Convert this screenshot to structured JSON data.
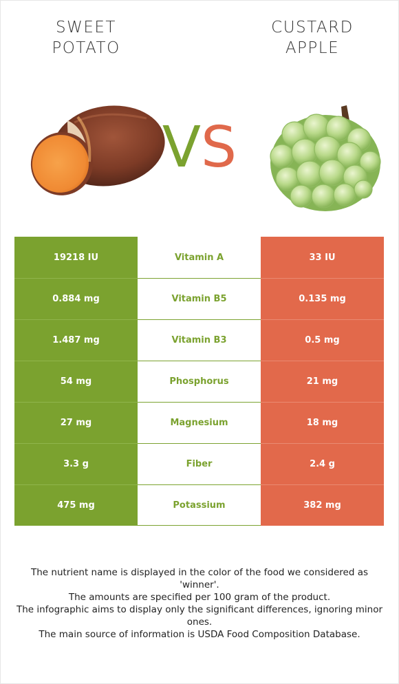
{
  "left_food": {
    "title_line1": "SWEET",
    "title_line2": "POTATO",
    "image": "sweet-potato",
    "color": "#7ba22f"
  },
  "right_food": {
    "title_line1": "CUSTARD",
    "title_line2": "APPLE",
    "image": "custard-apple",
    "color": "#e2694b"
  },
  "vs": {
    "v": "V",
    "s": "S"
  },
  "rows": [
    {
      "left": "19218 IU",
      "nutrient": "Vitamin A",
      "right": "33 IU"
    },
    {
      "left": "0.884 mg",
      "nutrient": "Vitamin B5",
      "right": "0.135 mg"
    },
    {
      "left": "1.487 mg",
      "nutrient": "Vitamin B3",
      "right": "0.5 mg"
    },
    {
      "left": "54 mg",
      "nutrient": "Phosphorus",
      "right": "21 mg"
    },
    {
      "left": "27 mg",
      "nutrient": "Magnesium",
      "right": "18 mg"
    },
    {
      "left": "3.3 g",
      "nutrient": "Fiber",
      "right": "2.4 g"
    },
    {
      "left": "475 mg",
      "nutrient": "Potassium",
      "right": "382 mg"
    }
  ],
  "notes": [
    "The nutrient name is displayed in the color of the food we considered as 'winner'.",
    "The amounts are specified per 100 gram of the product.",
    "The infographic aims to display only the significant differences, ignoring minor ones.",
    "The main source of information is USDA Food Composition Database."
  ]
}
